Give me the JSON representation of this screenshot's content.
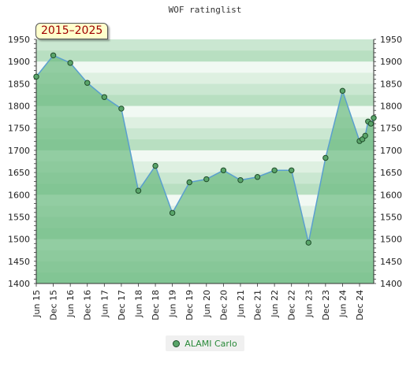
{
  "chart_data": {
    "type": "area",
    "title": "WOF ratinglist",
    "period_label": "2015–2025",
    "ylim": [
      1400,
      1950
    ],
    "yticks": [
      1400,
      1450,
      1500,
      1550,
      1600,
      1650,
      1700,
      1750,
      1800,
      1850,
      1900,
      1950
    ],
    "xlim": [
      "2015-06",
      "2025-01"
    ],
    "xticks": [
      "Jun 15",
      "Dec 15",
      "Jun 16",
      "Dec 16",
      "Jun 17",
      "Dec 17",
      "Jun 18",
      "Dec 18",
      "Jun 19",
      "Dec 19",
      "Jun 20",
      "Dec 20",
      "Jun 21",
      "Dec 21",
      "Jun 22",
      "Dec 22",
      "Jun 23",
      "Dec 23",
      "Jun 24",
      "Dec 24"
    ],
    "grid": true,
    "legend": "bottom-center",
    "series": [
      {
        "name": "ALAMI Carlo",
        "color": "#5aa56a",
        "points": [
          {
            "x": "2015-06",
            "y": 1866
          },
          {
            "x": "2015-12",
            "y": 1914
          },
          {
            "x": "2016-06",
            "y": 1897
          },
          {
            "x": "2016-12",
            "y": 1852
          },
          {
            "x": "2017-06",
            "y": 1820
          },
          {
            "x": "2017-12",
            "y": 1794
          },
          {
            "x": "2018-06",
            "y": 1609
          },
          {
            "x": "2018-12",
            "y": 1665
          },
          {
            "x": "2019-06",
            "y": 1559
          },
          {
            "x": "2019-12",
            "y": 1628
          },
          {
            "x": "2020-06",
            "y": 1635
          },
          {
            "x": "2020-12",
            "y": 1655
          },
          {
            "x": "2021-06",
            "y": 1633
          },
          {
            "x": "2021-12",
            "y": 1640
          },
          {
            "x": "2022-06",
            "y": 1655
          },
          {
            "x": "2022-12",
            "y": 1655
          },
          {
            "x": "2023-06",
            "y": 1492
          },
          {
            "x": "2023-12",
            "y": 1683
          },
          {
            "x": "2024-06",
            "y": 1834
          },
          {
            "x": "2024-12",
            "y": 1721
          },
          {
            "x": "2025-01",
            "y": 1725
          },
          {
            "x": "2025-02",
            "y": 1733
          },
          {
            "x": "2025-03",
            "y": 1765
          },
          {
            "x": "2025-04",
            "y": 1760
          },
          {
            "x": "2025-05",
            "y": 1773
          }
        ]
      }
    ]
  }
}
